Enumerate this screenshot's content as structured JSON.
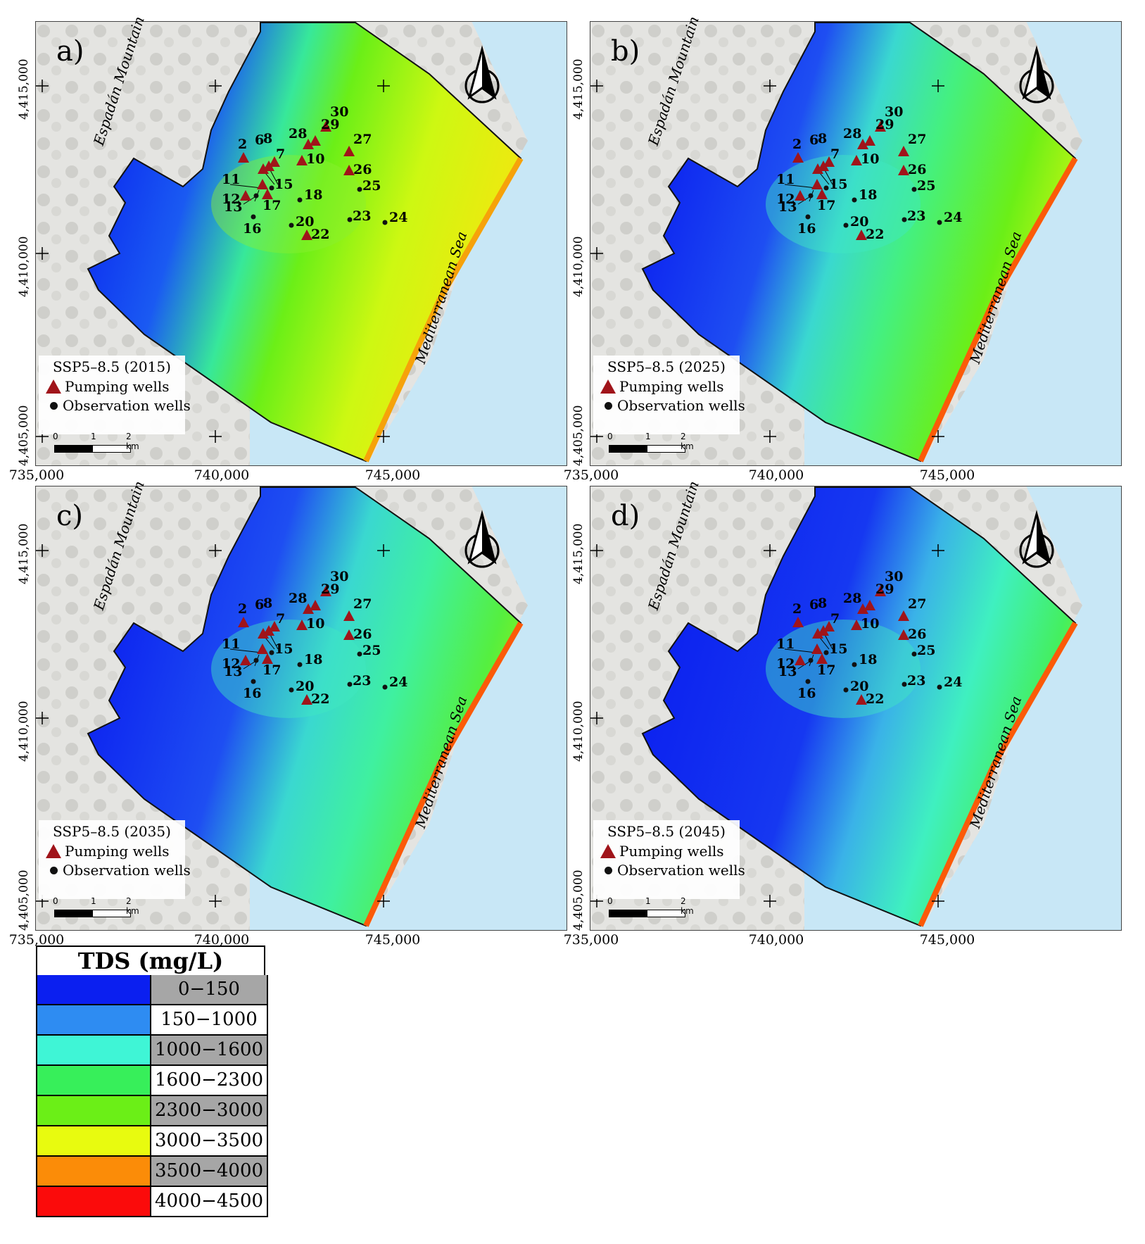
{
  "panels": [
    {
      "label": "a)",
      "scenario": "SSP5–8.5 (2015)",
      "year": 2015
    },
    {
      "label": "b)",
      "scenario": "SSP5–8.5 (2025)",
      "year": 2025
    },
    {
      "label": "c)",
      "scenario": "SSP5–8.5 (2035)",
      "year": 2035
    },
    {
      "label": "d)",
      "scenario": "SSP5–8.5 (2045)",
      "year": 2045
    }
  ],
  "legend": {
    "pumping": "Pumping wells",
    "observation": "Observation wells"
  },
  "scale_bar": {
    "labels": [
      "0",
      "1",
      "2 km"
    ]
  },
  "x_ticks": [
    "735,000",
    "740,000",
    "745,000"
  ],
  "y_ticks": [
    "4,415,000",
    "4,410,000",
    "4,405,000"
  ],
  "places": {
    "mountain": "Espadán Mountain",
    "sea": "Mediterranean Sea"
  },
  "pumping_wells": [
    "2",
    "6",
    "7",
    "8",
    "10",
    "11",
    "12",
    "17",
    "22",
    "26",
    "27",
    "28",
    "29",
    "30"
  ],
  "observation_wells": [
    "13",
    "15",
    "16",
    "18",
    "20",
    "23",
    "24",
    "25"
  ],
  "tds": {
    "title": "TDS (mg/L)",
    "classes": [
      {
        "label": "0−150",
        "color": "#0b1ff0",
        "label_bg": "#a6a6a6"
      },
      {
        "label": "150−1000",
        "color": "#2e8cf2",
        "label_bg": "#ffffff"
      },
      {
        "label": "1000−1600",
        "color": "#3ff5d6",
        "label_bg": "#a6a6a6"
      },
      {
        "label": "1600−2300",
        "color": "#37ef5a",
        "label_bg": "#ffffff"
      },
      {
        "label": "2300−3000",
        "color": "#6bef17",
        "label_bg": "#a6a6a6"
      },
      {
        "label": "3000−3500",
        "color": "#e8fb0f",
        "label_bg": "#ffffff"
      },
      {
        "label": "3500−4000",
        "color": "#fb8c08",
        "label_bg": "#a6a6a6"
      },
      {
        "label": "4000−4500",
        "color": "#fb0b0b",
        "label_bg": "#ffffff"
      }
    ]
  }
}
